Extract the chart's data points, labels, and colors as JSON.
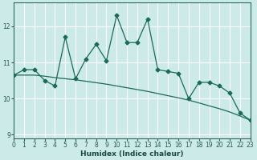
{
  "xlabel": "Humidex (Indice chaleur)",
  "ylabel": "",
  "bg_color": "#cceae8",
  "grid_color": "#ffffff",
  "line_color": "#1a6b5a",
  "x_data": [
    0,
    1,
    2,
    3,
    4,
    5,
    6,
    7,
    8,
    9,
    10,
    11,
    12,
    13,
    14,
    15,
    16,
    17,
    18,
    19,
    20,
    21,
    22,
    23
  ],
  "y_jagged": [
    10.65,
    10.8,
    10.8,
    10.5,
    10.35,
    11.7,
    10.55,
    11.1,
    11.5,
    11.05,
    12.3,
    11.55,
    11.55,
    12.2,
    10.8,
    10.75,
    10.7,
    10.0,
    10.45,
    10.45,
    10.35,
    10.15,
    9.6,
    9.4
  ],
  "y_trend": [
    10.65,
    10.65,
    10.65,
    10.62,
    10.58,
    10.55,
    10.52,
    10.48,
    10.44,
    10.4,
    10.35,
    10.3,
    10.25,
    10.2,
    10.14,
    10.08,
    10.02,
    9.96,
    9.88,
    9.8,
    9.72,
    9.63,
    9.52,
    9.4
  ],
  "xlim": [
    0,
    23
  ],
  "ylim": [
    8.9,
    12.65
  ],
  "yticks": [
    9,
    10,
    11,
    12
  ],
  "xticks": [
    0,
    1,
    2,
    3,
    4,
    5,
    6,
    7,
    8,
    9,
    10,
    11,
    12,
    13,
    14,
    15,
    16,
    17,
    18,
    19,
    20,
    21,
    22,
    23
  ],
  "marker": "D",
  "markersize": 2.5,
  "linewidth": 0.9,
  "tick_fontsize": 5.5,
  "xlabel_fontsize": 6.5
}
